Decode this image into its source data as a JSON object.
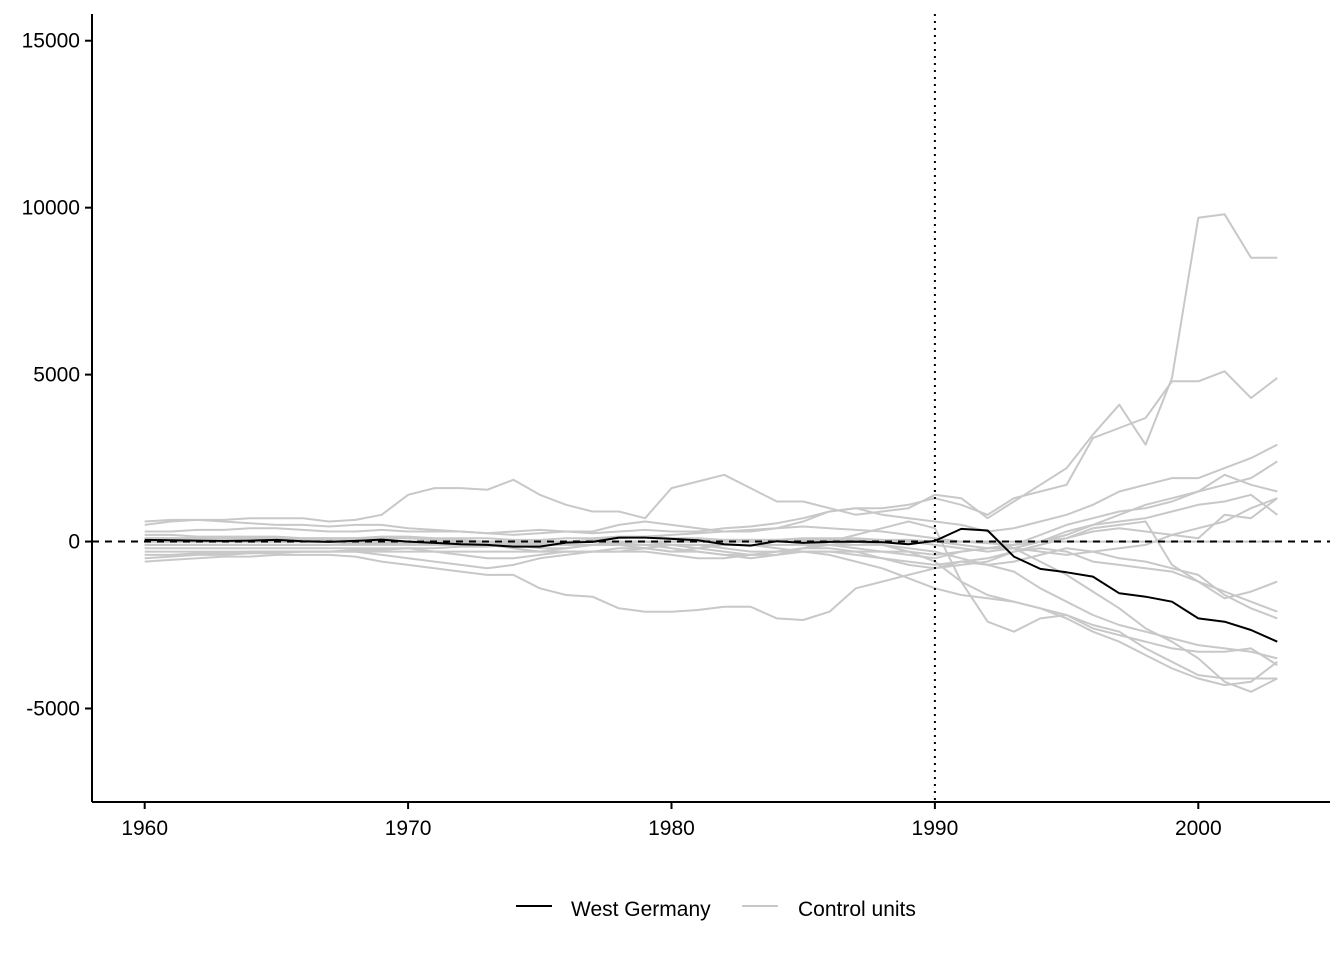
{
  "chart_data": {
    "type": "line",
    "title": "",
    "xlabel": "",
    "ylabel": "",
    "xlim": [
      1958,
      2005
    ],
    "ylim": [
      -7800,
      15800
    ],
    "x_ticks": [
      1960,
      1970,
      1980,
      1990,
      2000
    ],
    "y_ticks": [
      -5000,
      0,
      5000,
      10000,
      15000
    ],
    "x_tick_labels": [
      "1960",
      "1970",
      "1980",
      "1990",
      "2000"
    ],
    "y_tick_labels": [
      "-5000",
      "0",
      "5000",
      "10000",
      "15000"
    ],
    "reference_lines": {
      "horizontal_dashed_y": 0,
      "vertical_dotted_x": 1990
    },
    "grid": false,
    "legend": {
      "position": "bottom",
      "entries": [
        {
          "label": "West Germany",
          "color": "#000000"
        },
        {
          "label": "Control units",
          "color": "#c8c8c8"
        }
      ]
    },
    "x": [
      1960,
      1961,
      1962,
      1963,
      1964,
      1965,
      1966,
      1967,
      1968,
      1969,
      1970,
      1971,
      1972,
      1973,
      1974,
      1975,
      1976,
      1977,
      1978,
      1979,
      1980,
      1981,
      1982,
      1983,
      1984,
      1985,
      1986,
      1987,
      1988,
      1989,
      1990,
      1991,
      1992,
      1993,
      1994,
      1995,
      1996,
      1997,
      1998,
      1999,
      2000,
      2001,
      2002,
      2003
    ],
    "series": [
      {
        "name": "West Germany",
        "color": "#000000",
        "emphasis": true,
        "values": [
          50,
          40,
          30,
          20,
          30,
          50,
          10,
          -10,
          20,
          60,
          0,
          -40,
          -80,
          -100,
          -150,
          -150,
          -30,
          -10,
          120,
          120,
          80,
          40,
          -80,
          -120,
          10,
          -40,
          -10,
          0,
          -20,
          -80,
          20,
          380,
          330,
          -450,
          -820,
          -920,
          -1050,
          -1550,
          -1650,
          -1800,
          -2300,
          -2400,
          -2650,
          -3000
        ]
      },
      {
        "name": "",
        "color": "#c8c8c8",
        "values": [
          500,
          600,
          650,
          650,
          700,
          700,
          700,
          600,
          650,
          800,
          1400,
          1600,
          1600,
          1550,
          1850,
          1400,
          1100,
          900,
          900,
          700,
          1600,
          1800,
          2000,
          1600,
          1200,
          1200,
          1000,
          800,
          900,
          1000,
          1400,
          1300,
          700,
          1200,
          1700,
          2200,
          3200,
          4100,
          2900,
          4900,
          9700,
          9800,
          8500,
          8500
        ]
      },
      {
        "name": "",
        "color": "#c8c8c8",
        "values": [
          600,
          650,
          650,
          600,
          550,
          500,
          500,
          450,
          500,
          500,
          400,
          350,
          300,
          250,
          300,
          350,
          300,
          300,
          500,
          600,
          500,
          400,
          300,
          300,
          400,
          600,
          900,
          1000,
          1000,
          1100,
          1300,
          1100,
          800,
          1300,
          1500,
          1700,
          3100,
          3400,
          3700,
          4800,
          4800,
          5100,
          4300,
          4900
        ]
      },
      {
        "name": "",
        "color": "#c8c8c8",
        "values": [
          300,
          300,
          350,
          350,
          400,
          400,
          350,
          300,
          300,
          350,
          300,
          300,
          300,
          250,
          200,
          250,
          300,
          250,
          300,
          350,
          300,
          300,
          400,
          450,
          550,
          700,
          900,
          1000,
          800,
          700,
          600,
          500,
          300,
          400,
          600,
          800,
          1100,
          1500,
          1700,
          1900,
          1900,
          2200,
          2500,
          2900
        ]
      },
      {
        "name": "",
        "color": "#c8c8c8",
        "values": [
          -500,
          -450,
          -400,
          -400,
          -350,
          -350,
          -300,
          -300,
          -250,
          -250,
          -200,
          -200,
          -150,
          -150,
          -100,
          -50,
          0,
          50,
          100,
          150,
          200,
          250,
          300,
          350,
          400,
          450,
          400,
          350,
          300,
          200,
          100,
          0,
          -50,
          -100,
          0,
          200,
          500,
          800,
          1100,
          1300,
          1500,
          1700,
          1900,
          2400
        ]
      },
      {
        "name": "",
        "color": "#c8c8c8",
        "values": [
          200,
          200,
          150,
          150,
          150,
          150,
          100,
          100,
          100,
          150,
          150,
          100,
          100,
          100,
          50,
          50,
          100,
          100,
          150,
          150,
          100,
          100,
          50,
          50,
          50,
          100,
          100,
          100,
          50,
          50,
          0,
          -100,
          -200,
          -100,
          200,
          500,
          700,
          900,
          1000,
          1200,
          1500,
          2000,
          1700,
          1500
        ]
      },
      {
        "name": "",
        "color": "#c8c8c8",
        "values": [
          -100,
          -100,
          -100,
          -100,
          -100,
          -100,
          -100,
          -100,
          -50,
          -50,
          -50,
          -50,
          -50,
          -50,
          -50,
          0,
          0,
          0,
          0,
          0,
          0,
          50,
          50,
          50,
          50,
          50,
          50,
          50,
          50,
          0,
          -100,
          -200,
          -300,
          -200,
          0,
          300,
          500,
          600,
          700,
          900,
          1100,
          1200,
          1400,
          800
        ]
      },
      {
        "name": "",
        "color": "#c8c8c8",
        "values": [
          -300,
          -300,
          -300,
          -300,
          -300,
          -300,
          -300,
          -300,
          -300,
          -300,
          -300,
          -300,
          -300,
          -300,
          -300,
          -300,
          -300,
          -300,
          -200,
          -200,
          -300,
          -300,
          -400,
          -400,
          -300,
          -300,
          -300,
          -300,
          -300,
          -300,
          -400,
          -300,
          -200,
          -100,
          0,
          100,
          300,
          400,
          300,
          200,
          100,
          800,
          700,
          1300
        ]
      },
      {
        "name": "",
        "color": "#c8c8c8",
        "values": [
          100,
          100,
          100,
          100,
          100,
          50,
          50,
          50,
          50,
          0,
          0,
          0,
          0,
          0,
          0,
          0,
          0,
          0,
          0,
          0,
          0,
          0,
          0,
          0,
          0,
          0,
          -100,
          -200,
          -300,
          -400,
          -500,
          -300,
          -200,
          -200,
          -300,
          -400,
          -300,
          -200,
          -100,
          200,
          400,
          600,
          1000,
          1300
        ]
      },
      {
        "name": "",
        "color": "#c8c8c8",
        "values": [
          0,
          0,
          0,
          0,
          0,
          0,
          0,
          0,
          0,
          0,
          0,
          0,
          0,
          0,
          0,
          0,
          0,
          0,
          0,
          0,
          0,
          0,
          0,
          0,
          0,
          0,
          0,
          0,
          0,
          0,
          0,
          0,
          0,
          0,
          0,
          0,
          0,
          0,
          0,
          0,
          0,
          0,
          0,
          0
        ]
      },
      {
        "name": "",
        "color": "#c8c8c8",
        "values": [
          -200,
          -200,
          -200,
          -200,
          -200,
          -200,
          -200,
          -200,
          -200,
          -200,
          -200,
          -300,
          -400,
          -500,
          -500,
          -400,
          -300,
          -300,
          -300,
          -200,
          -100,
          -100,
          -200,
          -300,
          -300,
          -200,
          -200,
          -300,
          -500,
          -700,
          -800,
          -700,
          -600,
          -300,
          -200,
          -300,
          -600,
          -700,
          -800,
          -900,
          -1200,
          -1700,
          -1500,
          -1200
        ]
      },
      {
        "name": "",
        "color": "#c8c8c8",
        "values": [
          -400,
          -400,
          -350,
          -350,
          -300,
          -300,
          -300,
          -300,
          -300,
          -400,
          -500,
          -600,
          -700,
          -800,
          -700,
          -500,
          -400,
          -300,
          -300,
          -300,
          -400,
          -500,
          -500,
          -400,
          -400,
          -300,
          -300,
          -400,
          -500,
          -600,
          -700,
          -600,
          -500,
          -300,
          -100,
          100,
          400,
          500,
          600,
          -700,
          -1200,
          -1500,
          -1800,
          -2100
        ]
      },
      {
        "name": "",
        "color": "#c8c8c8",
        "values": [
          -600,
          -550,
          -500,
          -450,
          -450,
          -400,
          -400,
          -400,
          -450,
          -600,
          -700,
          -800,
          -900,
          -1000,
          -1000,
          -1400,
          -1600,
          -1650,
          -2000,
          -2100,
          -2100,
          -2050,
          -1950,
          -1950,
          -2300,
          -2350,
          -2100,
          -1400,
          -1200,
          -1000,
          -800,
          -600,
          -700,
          -600,
          -400,
          -200,
          -300,
          -500,
          -600,
          -800,
          -1000,
          -1600,
          -2000,
          -2300
        ]
      },
      {
        "name": "",
        "color": "#c8c8c8",
        "values": [
          0,
          0,
          0,
          0,
          0,
          0,
          0,
          0,
          0,
          0,
          0,
          0,
          0,
          -100,
          -200,
          -300,
          -200,
          -100,
          -100,
          -200,
          -300,
          -200,
          -100,
          -100,
          -200,
          -300,
          -400,
          -600,
          -800,
          -1100,
          -1400,
          -1600,
          -1700,
          -1800,
          -2000,
          -2300,
          -2700,
          -3000,
          -3400,
          -3800,
          -4100,
          -4300,
          -4200,
          -3600
        ]
      },
      {
        "name": "",
        "color": "#c8c8c8",
        "values": [
          0,
          0,
          0,
          0,
          0,
          0,
          0,
          0,
          0,
          0,
          0,
          0,
          0,
          0,
          -100,
          -200,
          -200,
          -100,
          0,
          0,
          -100,
          -200,
          -300,
          -400,
          -300,
          -200,
          -100,
          0,
          -100,
          -300,
          -600,
          -1200,
          -1600,
          -1800,
          -2000,
          -2200,
          -2500,
          -2700,
          -3200,
          -3600,
          -4000,
          -4100,
          -4100,
          -4100
        ]
      },
      {
        "name": "",
        "color": "#c8c8c8",
        "values": [
          -100,
          -100,
          -100,
          -100,
          -100,
          -100,
          -100,
          -100,
          -100,
          -100,
          -100,
          -100,
          -100,
          -100,
          -100,
          -100,
          -100,
          -100,
          -100,
          -100,
          -100,
          -100,
          -100,
          -100,
          -100,
          -100,
          -100,
          -100,
          -100,
          -200,
          -300,
          -500,
          -700,
          -900,
          -1400,
          -1800,
          -2200,
          -2500,
          -2700,
          -2900,
          -3100,
          -3200,
          -3300,
          -3500
        ]
      },
      {
        "name": "",
        "color": "#c8c8c8",
        "values": [
          100,
          100,
          100,
          100,
          100,
          100,
          100,
          100,
          100,
          100,
          100,
          50,
          50,
          0,
          0,
          0,
          0,
          0,
          -50,
          -100,
          -200,
          -300,
          -400,
          -500,
          -400,
          -200,
          0,
          200,
          400,
          600,
          400,
          -1200,
          -2400,
          -2700,
          -2300,
          -2200,
          -2600,
          -2800,
          -3000,
          -3200,
          -3300,
          -3300,
          -3200,
          -3700
        ]
      },
      {
        "name": "",
        "color": "#c8c8c8",
        "values": [
          0,
          0,
          0,
          0,
          0,
          0,
          0,
          0,
          0,
          0,
          0,
          0,
          0,
          0,
          0,
          0,
          0,
          0,
          0,
          0,
          0,
          0,
          0,
          0,
          0,
          0,
          0,
          0,
          0,
          0,
          0,
          0,
          0,
          -200,
          -600,
          -1000,
          -1500,
          -2000,
          -2600,
          -3000,
          -3500,
          -4200,
          -4500,
          -4100
        ]
      }
    ]
  }
}
